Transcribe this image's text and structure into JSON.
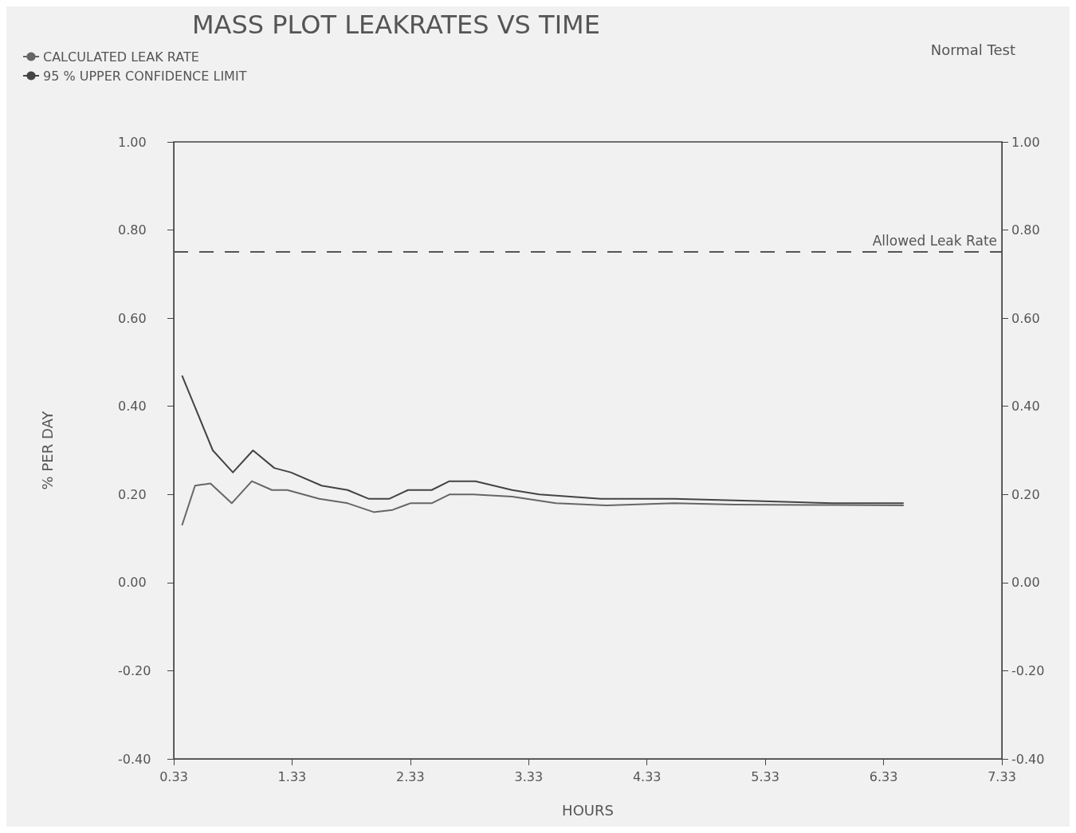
{
  "chart_data": {
    "type": "line",
    "title": "MASS PLOT LEAKRATES VS TIME",
    "xlabel": "HOURS",
    "ylabel": "% PER DAY",
    "annotations": [
      "Normal Test"
    ],
    "series": [
      {
        "name": "CALCULATED LEAK RATE",
        "color": "#666666",
        "x": [
          0.4,
          0.51,
          0.64,
          0.82,
          0.99,
          1.16,
          1.29,
          1.56,
          1.8,
          2.02,
          2.18,
          2.33,
          2.51,
          2.66,
          2.86,
          3.19,
          3.56,
          3.98,
          4.56,
          5.07,
          5.9,
          6.5
        ],
        "values": [
          0.13,
          0.22,
          0.225,
          0.18,
          0.23,
          0.21,
          0.21,
          0.19,
          0.18,
          0.16,
          0.165,
          0.18,
          0.18,
          0.2,
          0.2,
          0.195,
          0.18,
          0.175,
          0.18,
          0.177,
          0.176,
          0.175
        ]
      },
      {
        "name": "95 % UPPER CONFIDENCE LIMIT",
        "color": "#444444",
        "x": [
          0.4,
          0.66,
          0.83,
          1.0,
          1.18,
          1.32,
          1.58,
          1.8,
          1.98,
          2.15,
          2.31,
          2.51,
          2.66,
          2.88,
          3.19,
          3.42,
          3.94,
          4.56,
          5.26,
          5.9,
          6.5
        ],
        "values": [
          0.47,
          0.3,
          0.25,
          0.3,
          0.26,
          0.25,
          0.22,
          0.21,
          0.19,
          0.19,
          0.21,
          0.21,
          0.23,
          0.23,
          0.21,
          0.2,
          0.19,
          0.19,
          0.185,
          0.18,
          0.18
        ]
      }
    ],
    "ref_lines": [
      {
        "axis": "y",
        "value": 0.75,
        "label": "Allowed Leak Rate",
        "color": "#555555",
        "line_style": "dashed"
      }
    ],
    "xlim": [
      0.33,
      7.33
    ],
    "xticks": [
      0.33,
      1.33,
      2.33,
      3.33,
      4.33,
      5.33,
      6.33,
      7.33
    ],
    "ylim": [
      -0.4,
      1.0
    ],
    "yticks": [
      {
        "value": -0.4,
        "label": "-0.40"
      },
      {
        "value": -0.2,
        "label": "-0.20"
      },
      {
        "value": 0,
        "label": "0.00"
      },
      {
        "value": 0.2,
        "label": "0.20"
      },
      {
        "value": 0.4,
        "label": "0.40"
      },
      {
        "value": 0.6,
        "label": "0.60"
      },
      {
        "value": 0.8,
        "label": "0.80"
      },
      {
        "value": 1.0,
        "label": "1.00"
      }
    ],
    "y2lim": [
      -0.4,
      1.0
    ],
    "y2ticks": [
      {
        "value": -0.4,
        "label": "-0.40"
      },
      {
        "value": -0.2,
        "label": "-0.20"
      },
      {
        "value": 0,
        "label": "0.00"
      },
      {
        "value": 0.2,
        "label": "0.20"
      },
      {
        "value": 0.4,
        "label": "0.40"
      },
      {
        "value": 0.6,
        "label": "0.60"
      },
      {
        "value": 0.8,
        "label": "0.80"
      },
      {
        "value": 1.0,
        "label": "1.00"
      }
    ],
    "legend": "top left",
    "grid": false,
    "marker": "none",
    "line_style": "solid"
  }
}
